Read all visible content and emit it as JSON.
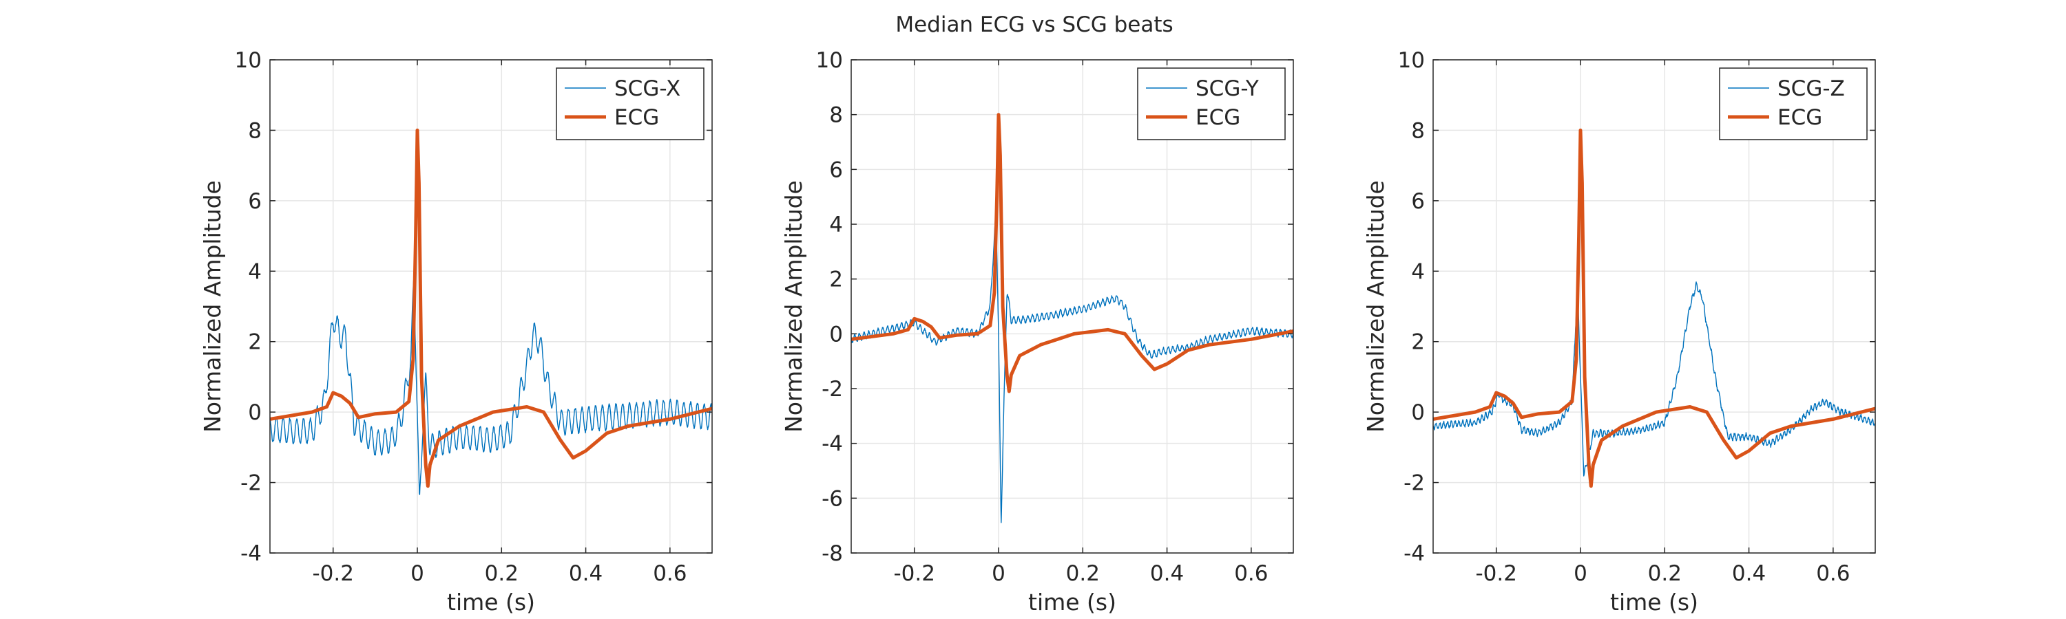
{
  "figure": {
    "title": "Median ECG vs SCG beats"
  },
  "colors": {
    "scg": "#0072BD",
    "ecg": "#D95319",
    "grid": "#e6e6e6",
    "axis": "#262626"
  },
  "chart_data": [
    {
      "type": "line",
      "title": "",
      "xlabel": "time (s)",
      "ylabel": "Normalized Amplitude",
      "xlim": [
        -0.35,
        0.7
      ],
      "ylim": [
        -4,
        10
      ],
      "xticks": [
        -0.2,
        0,
        0.2,
        0.4,
        0.6
      ],
      "yticks": [
        -4,
        -2,
        0,
        2,
        4,
        6,
        8,
        10
      ],
      "xticklabels": [
        "-0.2",
        "0",
        "0.2",
        "0.4",
        "0.6"
      ],
      "yticklabels": [
        "-4",
        "-2",
        "0",
        "2",
        "4",
        "6",
        "8",
        "10"
      ],
      "grid": true,
      "legend": "top-right",
      "series": [
        {
          "name": "SCG-X",
          "osc_amp": 0.35,
          "osc_freq": 62,
          "points": [
            [
              -0.35,
              -0.5
            ],
            [
              -0.25,
              -0.55
            ],
            [
              -0.22,
              0.3
            ],
            [
              -0.2,
              2.7
            ],
            [
              -0.185,
              2.2
            ],
            [
              -0.17,
              2.1
            ],
            [
              -0.15,
              -0.3
            ],
            [
              -0.1,
              -0.9
            ],
            [
              -0.06,
              -0.8
            ],
            [
              -0.04,
              -0.3
            ],
            [
              -0.015,
              1.5
            ],
            [
              -0.008,
              3.9
            ],
            [
              -0.002,
              1.0
            ],
            [
              0.005,
              -2.8
            ],
            [
              0.012,
              -0.5
            ],
            [
              0.02,
              0.8
            ],
            [
              0.03,
              -1.0
            ],
            [
              0.05,
              -0.9
            ],
            [
              0.1,
              -0.7
            ],
            [
              0.18,
              -0.8
            ],
            [
              0.22,
              -0.6
            ],
            [
              0.24,
              0.3
            ],
            [
              0.26,
              1.3
            ],
            [
              0.275,
              2.2
            ],
            [
              0.29,
              2.0
            ],
            [
              0.31,
              0.8
            ],
            [
              0.34,
              -0.3
            ],
            [
              0.4,
              -0.2
            ],
            [
              0.5,
              -0.1
            ],
            [
              0.6,
              0.0
            ],
            [
              0.7,
              -0.15
            ]
          ]
        },
        {
          "name": "ECG",
          "points": [
            [
              -0.35,
              -0.2
            ],
            [
              -0.25,
              0.0
            ],
            [
              -0.215,
              0.15
            ],
            [
              -0.2,
              0.55
            ],
            [
              -0.18,
              0.45
            ],
            [
              -0.16,
              0.25
            ],
            [
              -0.14,
              -0.15
            ],
            [
              -0.1,
              -0.05
            ],
            [
              -0.05,
              0.0
            ],
            [
              -0.02,
              0.3
            ],
            [
              -0.01,
              1.5
            ],
            [
              -0.004,
              5.0
            ],
            [
              0.0,
              8.0
            ],
            [
              0.004,
              6.5
            ],
            [
              0.01,
              1.0
            ],
            [
              0.02,
              -1.5
            ],
            [
              0.025,
              -2.1
            ],
            [
              0.03,
              -1.5
            ],
            [
              0.05,
              -0.8
            ],
            [
              0.1,
              -0.4
            ],
            [
              0.18,
              0.0
            ],
            [
              0.26,
              0.15
            ],
            [
              0.3,
              0.0
            ],
            [
              0.34,
              -0.8
            ],
            [
              0.37,
              -1.3
            ],
            [
              0.4,
              -1.1
            ],
            [
              0.45,
              -0.6
            ],
            [
              0.5,
              -0.4
            ],
            [
              0.6,
              -0.2
            ],
            [
              0.7,
              0.1
            ]
          ]
        }
      ]
    },
    {
      "type": "line",
      "title": "",
      "xlabel": "time (s)",
      "ylabel": "Normalized Amplitude",
      "xlim": [
        -0.35,
        0.7
      ],
      "ylim": [
        -8,
        10
      ],
      "xticks": [
        -0.2,
        0,
        0.2,
        0.4,
        0.6
      ],
      "yticks": [
        -8,
        -6,
        -4,
        -2,
        0,
        2,
        4,
        6,
        8,
        10
      ],
      "xticklabels": [
        "-0.2",
        "0",
        "0.2",
        "0.4",
        "0.6"
      ],
      "yticklabels": [
        "-8",
        "-6",
        "-4",
        "-2",
        "0",
        "2",
        "4",
        "6",
        "8",
        "10"
      ],
      "grid": true,
      "legend": "top-right",
      "series": [
        {
          "name": "SCG-Y",
          "osc_amp": 0.12,
          "osc_freq": 90,
          "points": [
            [
              -0.35,
              -0.2
            ],
            [
              -0.25,
              0.2
            ],
            [
              -0.2,
              0.4
            ],
            [
              -0.15,
              -0.3
            ],
            [
              -0.1,
              0.1
            ],
            [
              -0.05,
              0.0
            ],
            [
              -0.02,
              1.0
            ],
            [
              -0.006,
              4.5
            ],
            [
              0.0,
              0.0
            ],
            [
              0.006,
              -7.0
            ],
            [
              0.012,
              -3.0
            ],
            [
              0.02,
              1.6
            ],
            [
              0.03,
              0.5
            ],
            [
              0.05,
              0.5
            ],
            [
              0.1,
              0.6
            ],
            [
              0.2,
              0.9
            ],
            [
              0.28,
              1.3
            ],
            [
              0.3,
              1.0
            ],
            [
              0.33,
              -0.2
            ],
            [
              0.36,
              -0.8
            ],
            [
              0.4,
              -0.6
            ],
            [
              0.45,
              -0.5
            ],
            [
              0.5,
              -0.2
            ],
            [
              0.6,
              0.1
            ],
            [
              0.7,
              0.0
            ]
          ]
        },
        {
          "name": "ECG",
          "points": [
            [
              -0.35,
              -0.2
            ],
            [
              -0.25,
              0.0
            ],
            [
              -0.215,
              0.15
            ],
            [
              -0.2,
              0.55
            ],
            [
              -0.18,
              0.45
            ],
            [
              -0.16,
              0.25
            ],
            [
              -0.14,
              -0.15
            ],
            [
              -0.1,
              -0.05
            ],
            [
              -0.05,
              0.0
            ],
            [
              -0.02,
              0.3
            ],
            [
              -0.01,
              1.5
            ],
            [
              -0.004,
              5.0
            ],
            [
              0.0,
              8.0
            ],
            [
              0.004,
              6.5
            ],
            [
              0.01,
              1.0
            ],
            [
              0.02,
              -1.5
            ],
            [
              0.025,
              -2.1
            ],
            [
              0.03,
              -1.5
            ],
            [
              0.05,
              -0.8
            ],
            [
              0.1,
              -0.4
            ],
            [
              0.18,
              0.0
            ],
            [
              0.26,
              0.15
            ],
            [
              0.3,
              0.0
            ],
            [
              0.34,
              -0.8
            ],
            [
              0.37,
              -1.3
            ],
            [
              0.4,
              -1.1
            ],
            [
              0.45,
              -0.6
            ],
            [
              0.5,
              -0.4
            ],
            [
              0.6,
              -0.2
            ],
            [
              0.7,
              0.1
            ]
          ]
        }
      ]
    },
    {
      "type": "line",
      "title": "",
      "xlabel": "time (s)",
      "ylabel": "Normalized Amplitude",
      "xlim": [
        -0.35,
        0.7
      ],
      "ylim": [
        -4,
        10
      ],
      "xticks": [
        -0.2,
        0,
        0.2,
        0.4,
        0.6
      ],
      "yticks": [
        -4,
        -2,
        0,
        2,
        4,
        6,
        8,
        10
      ],
      "xticklabels": [
        "-0.2",
        "0",
        "0.2",
        "0.4",
        "0.6"
      ],
      "yticklabels": [
        "-4",
        "-2",
        "0",
        "2",
        "4",
        "6",
        "8",
        "10"
      ],
      "grid": true,
      "legend": "top-right",
      "series": [
        {
          "name": "SCG-Z",
          "osc_amp": 0.08,
          "osc_freq": 110,
          "points": [
            [
              -0.35,
              -0.4
            ],
            [
              -0.25,
              -0.3
            ],
            [
              -0.21,
              0.0
            ],
            [
              -0.195,
              0.5
            ],
            [
              -0.18,
              0.3
            ],
            [
              -0.16,
              0.2
            ],
            [
              -0.14,
              -0.5
            ],
            [
              -0.1,
              -0.6
            ],
            [
              -0.05,
              -0.3
            ],
            [
              -0.02,
              0.3
            ],
            [
              -0.007,
              3.6
            ],
            [
              0.0,
              1.0
            ],
            [
              0.008,
              -1.8
            ],
            [
              0.02,
              -1.2
            ],
            [
              0.03,
              -0.6
            ],
            [
              0.08,
              -0.6
            ],
            [
              0.15,
              -0.5
            ],
            [
              0.2,
              -0.3
            ],
            [
              0.23,
              1.0
            ],
            [
              0.26,
              3.0
            ],
            [
              0.275,
              3.6
            ],
            [
              0.29,
              3.2
            ],
            [
              0.32,
              1.0
            ],
            [
              0.35,
              -0.7
            ],
            [
              0.4,
              -0.7
            ],
            [
              0.45,
              -0.9
            ],
            [
              0.5,
              -0.5
            ],
            [
              0.55,
              0.1
            ],
            [
              0.58,
              0.3
            ],
            [
              0.62,
              0.0
            ],
            [
              0.7,
              -0.3
            ]
          ]
        },
        {
          "name": "ECG",
          "points": [
            [
              -0.35,
              -0.2
            ],
            [
              -0.25,
              0.0
            ],
            [
              -0.215,
              0.15
            ],
            [
              -0.2,
              0.55
            ],
            [
              -0.18,
              0.45
            ],
            [
              -0.16,
              0.25
            ],
            [
              -0.14,
              -0.15
            ],
            [
              -0.1,
              -0.05
            ],
            [
              -0.05,
              0.0
            ],
            [
              -0.02,
              0.3
            ],
            [
              -0.01,
              1.5
            ],
            [
              -0.004,
              5.0
            ],
            [
              0.0,
              8.0
            ],
            [
              0.004,
              6.5
            ],
            [
              0.01,
              1.0
            ],
            [
              0.02,
              -1.5
            ],
            [
              0.025,
              -2.1
            ],
            [
              0.03,
              -1.5
            ],
            [
              0.05,
              -0.8
            ],
            [
              0.1,
              -0.4
            ],
            [
              0.18,
              0.0
            ],
            [
              0.26,
              0.15
            ],
            [
              0.3,
              0.0
            ],
            [
              0.34,
              -0.8
            ],
            [
              0.37,
              -1.3
            ],
            [
              0.4,
              -1.1
            ],
            [
              0.45,
              -0.6
            ],
            [
              0.5,
              -0.4
            ],
            [
              0.6,
              -0.2
            ],
            [
              0.7,
              0.1
            ]
          ]
        }
      ]
    }
  ]
}
